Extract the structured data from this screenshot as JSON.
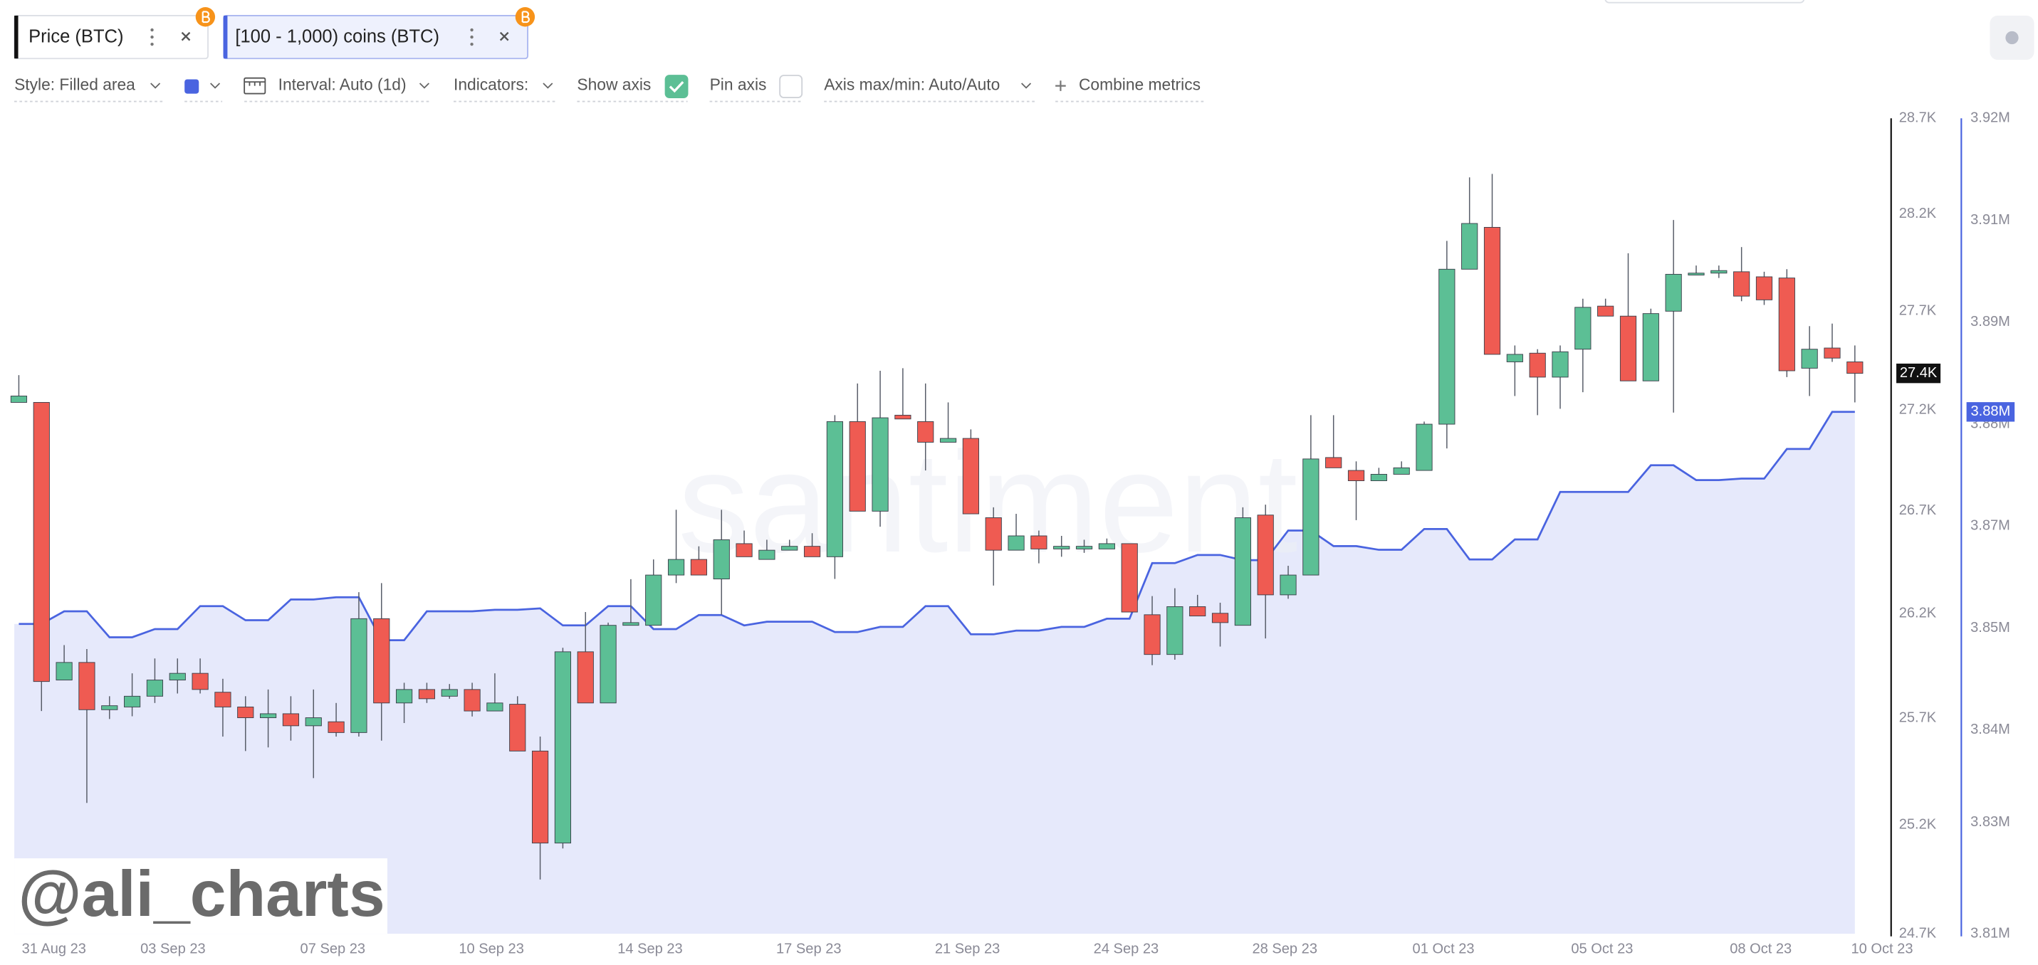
{
  "toolbar": {
    "style": "Style: Filled area",
    "swatch_color": "#4a64e0",
    "interval": "Interval: Auto (1d)",
    "indicators": "Indicators:",
    "show_axis": {
      "label": "Show axis",
      "checked": true
    },
    "pin_axis": {
      "label": "Pin axis",
      "checked": false
    },
    "axis_range": "Axis max/min: Auto/Auto",
    "combine": "Combine metrics"
  },
  "watermark": "santiment",
  "credit": "@ali_charts",
  "chart_data": {
    "type": "candlestick",
    "x": [
      0,
      1,
      2,
      3,
      4,
      5,
      6,
      7,
      8,
      9,
      10,
      11,
      12,
      13,
      14,
      15,
      16,
      17,
      18,
      19,
      20,
      21,
      22,
      23,
      24,
      25,
      26,
      27,
      28,
      29,
      30,
      31,
      32,
      33,
      34,
      35,
      36,
      37,
      38,
      39,
      40,
      41,
      42,
      43,
      44,
      45,
      46,
      47,
      48,
      49,
      50,
      51,
      52,
      53,
      54,
      55,
      56,
      57,
      58,
      59,
      60,
      61,
      62,
      63,
      64,
      65,
      66,
      67,
      68,
      69,
      70,
      71,
      72,
      73,
      74,
      75,
      76,
      77,
      78,
      79,
      80,
      81
    ],
    "xlim": [
      -0.2,
      82.6
    ],
    "xticks": [
      {
        "value": 1.55,
        "label": "31 Aug 23"
      },
      {
        "value": 6.8,
        "label": "03 Sep 23"
      },
      {
        "value": 13.85,
        "label": "07 Sep 23"
      },
      {
        "value": 20.85,
        "label": "10 Sep 23"
      },
      {
        "value": 27.85,
        "label": "14 Sep 23"
      },
      {
        "value": 34.85,
        "label": "17 Sep 23"
      },
      {
        "value": 41.85,
        "label": "21 Sep 23"
      },
      {
        "value": 48.85,
        "label": "24 Sep 23"
      },
      {
        "value": 55.85,
        "label": "28 Sep 23"
      },
      {
        "value": 62.85,
        "label": "01 Oct 23"
      },
      {
        "value": 69.85,
        "label": "05 Oct 23"
      },
      {
        "value": 76.85,
        "label": "08 Oct 23"
      },
      {
        "value": 82.2,
        "label": "10 Oct 23"
      }
    ],
    "ylim": [
      24.7,
      28.7
    ],
    "yscale": "log",
    "yticks": [
      {
        "value": 28.7,
        "label": "28.7K"
      },
      {
        "value": 28.2,
        "label": "28.2K"
      },
      {
        "value": 27.7,
        "label": "27.7K"
      },
      {
        "value": 27.2,
        "label": "27.2K"
      },
      {
        "value": 26.7,
        "label": "26.7K"
      },
      {
        "value": 26.2,
        "label": "26.2K"
      },
      {
        "value": 25.7,
        "label": "25.7K"
      },
      {
        "value": 25.2,
        "label": "25.2K"
      },
      {
        "value": 24.7,
        "label": "24.7K"
      }
    ],
    "y2lim": [
      3.81,
      3.92
    ],
    "y2ticks": [
      {
        "value": 3.92,
        "label": "3.92M"
      },
      {
        "value": 3.90625,
        "label": "3.91M"
      },
      {
        "value": 3.8925,
        "label": "3.89M"
      },
      {
        "value": 3.87875,
        "label": "3.88M"
      },
      {
        "value": 3.865,
        "label": "3.87M"
      },
      {
        "value": 3.85125,
        "label": "3.85M"
      },
      {
        "value": 3.8375,
        "label": "3.84M"
      },
      {
        "value": 3.825,
        "label": "3.83M"
      },
      {
        "value": 3.81,
        "label": "3.81M"
      }
    ],
    "series": [
      {
        "name": "Price (BTC)",
        "type": "candlestick",
        "color": "#111111",
        "up_color": "#5cbf95",
        "down_color": "#ef5b52",
        "last_label": "27.4K",
        "open": [
          27.238,
          27.238,
          25.881,
          25.965,
          25.74,
          25.753,
          25.804,
          25.881,
          25.913,
          25.823,
          25.753,
          25.702,
          25.721,
          25.664,
          25.683,
          25.632,
          26.175,
          25.772,
          25.836,
          25.804,
          25.836,
          25.734,
          25.766,
          25.545,
          25.116,
          26.016,
          25.772,
          26.143,
          26.143,
          26.386,
          26.462,
          26.367,
          26.539,
          26.462,
          26.507,
          26.526,
          26.475,
          27.142,
          26.698,
          27.174,
          27.142,
          27.039,
          27.058,
          26.666,
          26.507,
          26.577,
          26.513,
          26.513,
          26.513,
          26.539,
          26.194,
          26.003,
          26.233,
          26.201,
          26.143,
          26.679,
          26.29,
          26.386,
          26.963,
          26.899,
          26.848,
          26.88,
          26.899,
          27.129,
          27.914,
          28.13,
          27.442,
          27.486,
          27.365,
          27.506,
          27.725,
          27.674,
          27.346,
          27.699,
          27.888,
          27.894,
          27.901,
          27.875,
          27.869,
          27.41,
          27.512,
          27.442
        ],
        "high": [
          27.375,
          27.238,
          26.048,
          26.029,
          25.804,
          25.913,
          25.984,
          25.984,
          25.984,
          25.887,
          25.804,
          25.836,
          25.804,
          25.836,
          25.772,
          26.303,
          26.347,
          25.868,
          25.868,
          25.862,
          25.868,
          25.913,
          25.804,
          25.613,
          26.035,
          26.207,
          26.156,
          26.366,
          26.462,
          26.705,
          26.526,
          26.705,
          26.603,
          26.558,
          26.558,
          26.59,
          27.174,
          27.333,
          27.397,
          27.41,
          27.333,
          27.238,
          27.103,
          26.717,
          26.685,
          26.603,
          26.577,
          26.558,
          26.564,
          26.539,
          26.284,
          26.322,
          26.29,
          26.252,
          26.717,
          26.73,
          26.431,
          27.174,
          27.174,
          26.944,
          26.912,
          26.944,
          27.142,
          28.06,
          28.39,
          28.408,
          27.525,
          27.506,
          27.525,
          27.763,
          27.763,
          27.996,
          27.712,
          28.168,
          27.933,
          27.933,
          28.028,
          27.901,
          27.914,
          27.623,
          27.636,
          27.525
        ],
        "low": [
          27.238,
          25.734,
          25.881,
          25.302,
          25.696,
          25.709,
          25.772,
          25.817,
          25.817,
          25.613,
          25.545,
          25.562,
          25.594,
          25.418,
          25.613,
          25.613,
          25.594,
          25.677,
          25.772,
          25.792,
          25.708,
          25.734,
          25.545,
          24.948,
          25.091,
          25.772,
          25.772,
          26.143,
          26.143,
          26.347,
          26.386,
          26.194,
          26.475,
          26.462,
          26.507,
          26.475,
          26.367,
          26.698,
          26.622,
          27.155,
          26.899,
          27.039,
          26.685,
          26.335,
          26.507,
          26.443,
          26.475,
          26.494,
          26.513,
          26.207,
          25.952,
          25.978,
          26.188,
          26.041,
          26.143,
          26.08,
          26.271,
          26.386,
          26.912,
          26.654,
          26.848,
          26.88,
          26.899,
          27.008,
          27.914,
          27.48,
          27.27,
          27.174,
          27.206,
          27.289,
          27.674,
          27.346,
          27.346,
          27.187,
          27.888,
          27.869,
          27.75,
          27.731,
          27.365,
          27.27,
          27.442,
          27.238
        ],
        "close": [
          27.27,
          25.874,
          25.965,
          25.74,
          25.759,
          25.804,
          25.881,
          25.913,
          25.836,
          25.753,
          25.702,
          25.721,
          25.664,
          25.702,
          25.632,
          26.175,
          25.772,
          25.836,
          25.792,
          25.836,
          25.734,
          25.772,
          25.545,
          25.116,
          26.016,
          25.772,
          26.143,
          26.156,
          26.386,
          26.462,
          26.386,
          26.558,
          26.475,
          26.507,
          26.526,
          26.475,
          27.142,
          26.698,
          27.161,
          27.155,
          27.039,
          27.058,
          26.685,
          26.507,
          26.577,
          26.513,
          26.526,
          26.526,
          26.539,
          26.207,
          26.003,
          26.233,
          26.188,
          26.156,
          26.666,
          26.29,
          26.386,
          26.956,
          26.912,
          26.848,
          26.88,
          26.912,
          27.129,
          27.914,
          28.15,
          27.48,
          27.48,
          27.365,
          27.493,
          27.719,
          27.674,
          27.346,
          27.687,
          27.888,
          27.894,
          27.907,
          27.776,
          27.757,
          27.397,
          27.506,
          27.461,
          27.384
        ]
      },
      {
        "name": "[100 - 1,000) coins (BTC)",
        "type": "area",
        "axis": "y2",
        "color": "#4a64e0",
        "fill": "#e6e9fb",
        "last_label": "3.88M",
        "values": [
          3.8518,
          3.8518,
          3.8535,
          3.8535,
          3.85,
          3.85,
          3.8511,
          3.8511,
          3.8542,
          3.8542,
          3.8523,
          3.8523,
          3.8551,
          3.8551,
          3.8554,
          3.8554,
          3.8496,
          3.8496,
          3.8535,
          3.8535,
          3.8535,
          3.8537,
          3.8537,
          3.8539,
          3.8516,
          3.8516,
          3.8542,
          3.8542,
          3.8511,
          3.8511,
          3.853,
          3.853,
          3.8516,
          3.8521,
          3.8521,
          3.8521,
          3.8507,
          3.8507,
          3.8514,
          3.8514,
          3.8542,
          3.8542,
          3.8504,
          3.8504,
          3.8509,
          3.8509,
          3.8514,
          3.8514,
          3.8525,
          3.8525,
          3.86,
          3.86,
          3.8611,
          3.8611,
          3.8604,
          3.8604,
          3.8644,
          3.8644,
          3.8623,
          3.8623,
          3.8618,
          3.8618,
          3.8646,
          3.8646,
          3.8605,
          3.8605,
          3.8632,
          3.8632,
          3.8696,
          3.8696,
          3.8696,
          3.8696,
          3.8732,
          3.8732,
          3.8712,
          3.8712,
          3.8714,
          3.8714,
          3.8754,
          3.8754,
          3.8804,
          3.8804
        ]
      }
    ]
  }
}
